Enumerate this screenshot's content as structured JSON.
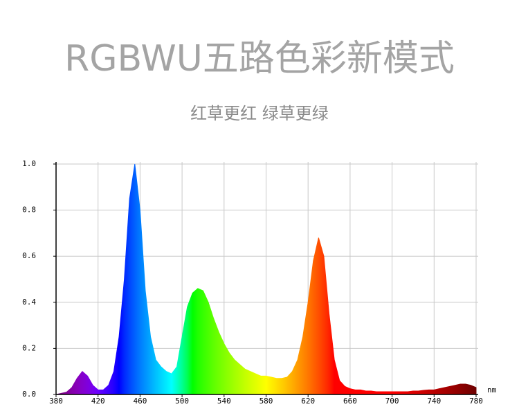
{
  "chart_data": {
    "type": "area",
    "title": "RGBWU五路色彩新模式",
    "subtitle": "红草更红 绿草更绿",
    "x_unit": "nm",
    "x": [
      380,
      385,
      390,
      395,
      400,
      405,
      410,
      415,
      420,
      425,
      430,
      435,
      440,
      445,
      450,
      455,
      460,
      465,
      470,
      475,
      480,
      485,
      490,
      495,
      500,
      505,
      510,
      515,
      520,
      525,
      530,
      535,
      540,
      545,
      550,
      555,
      560,
      565,
      570,
      575,
      580,
      585,
      590,
      595,
      600,
      605,
      610,
      615,
      620,
      625,
      630,
      635,
      640,
      645,
      650,
      655,
      660,
      665,
      670,
      675,
      680,
      685,
      690,
      695,
      700,
      705,
      710,
      715,
      720,
      725,
      730,
      735,
      740,
      745,
      750,
      755,
      760,
      765,
      770,
      775,
      780
    ],
    "values": [
      0,
      0.005,
      0.01,
      0.03,
      0.07,
      0.1,
      0.08,
      0.04,
      0.02,
      0.02,
      0.04,
      0.1,
      0.25,
      0.5,
      0.85,
      1.0,
      0.8,
      0.45,
      0.25,
      0.15,
      0.12,
      0.1,
      0.09,
      0.12,
      0.25,
      0.38,
      0.44,
      0.46,
      0.45,
      0.4,
      0.33,
      0.27,
      0.22,
      0.18,
      0.15,
      0.13,
      0.11,
      0.1,
      0.09,
      0.08,
      0.08,
      0.075,
      0.07,
      0.07,
      0.075,
      0.1,
      0.15,
      0.25,
      0.4,
      0.58,
      0.68,
      0.6,
      0.35,
      0.15,
      0.06,
      0.035,
      0.025,
      0.02,
      0.02,
      0.015,
      0.015,
      0.012,
      0.012,
      0.012,
      0.012,
      0.012,
      0.012,
      0.012,
      0.015,
      0.015,
      0.018,
      0.02,
      0.02,
      0.025,
      0.03,
      0.035,
      0.04,
      0.045,
      0.045,
      0.04,
      0.03
    ],
    "xlim": [
      380,
      780
    ],
    "ylim": [
      0,
      1
    ],
    "xticks": [
      380,
      420,
      460,
      500,
      540,
      580,
      620,
      660,
      700,
      740,
      780
    ],
    "yticks": [
      {
        "value": 0,
        "label": "0.0"
      },
      {
        "value": 0.2,
        "label": "0.2"
      },
      {
        "value": 0.4,
        "label": "0.4"
      },
      {
        "value": 0.6,
        "label": "0.6"
      },
      {
        "value": 0.8,
        "label": "0.8"
      },
      {
        "value": 1,
        "label": "1.0"
      }
    ],
    "grid": true
  }
}
